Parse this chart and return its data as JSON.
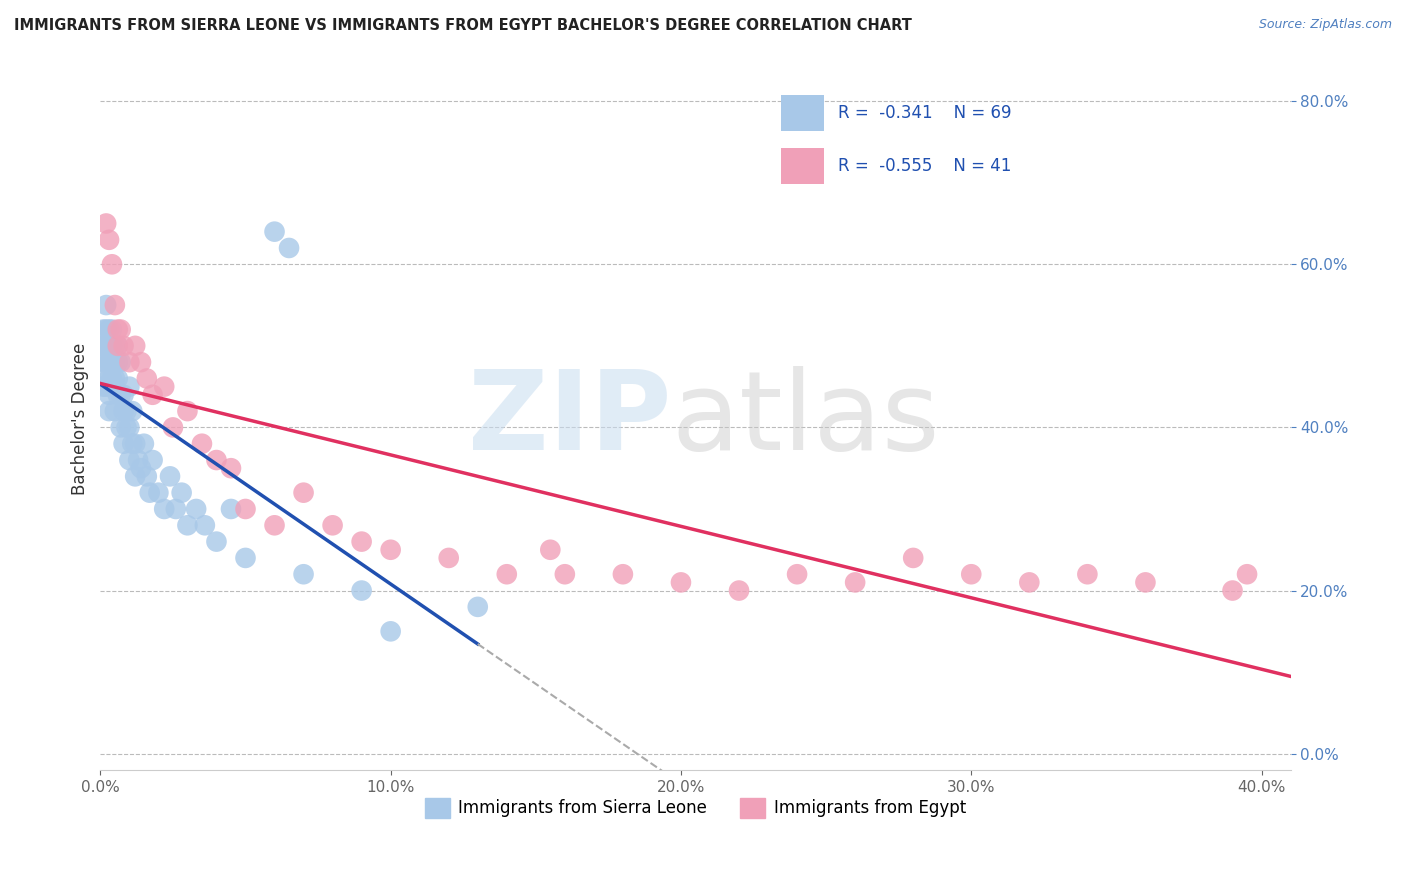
{
  "title": "IMMIGRANTS FROM SIERRA LEONE VS IMMIGRANTS FROM EGYPT BACHELOR'S DEGREE CORRELATION CHART",
  "source": "Source: ZipAtlas.com",
  "ylabel": "Bachelor's Degree",
  "legend_label1": "Immigrants from Sierra Leone",
  "legend_label2": "Immigrants from Egypt",
  "R1": -0.341,
  "N1": 69,
  "R2": -0.555,
  "N2": 41,
  "color1": "#a8c8e8",
  "color2": "#f0a0b8",
  "line_color1": "#2050b0",
  "line_color2": "#e03060",
  "xlim": [
    0.0,
    0.41
  ],
  "ylim": [
    -0.02,
    0.84
  ],
  "xticks": [
    0.0,
    0.1,
    0.2,
    0.3,
    0.4
  ],
  "yticks": [
    0.0,
    0.2,
    0.4,
    0.6,
    0.8
  ],
  "sierra_leone_x": [
    0.001,
    0.001,
    0.001,
    0.001,
    0.002,
    0.002,
    0.002,
    0.002,
    0.002,
    0.002,
    0.003,
    0.003,
    0.003,
    0.003,
    0.003,
    0.003,
    0.003,
    0.004,
    0.004,
    0.004,
    0.004,
    0.004,
    0.005,
    0.005,
    0.005,
    0.005,
    0.005,
    0.006,
    0.006,
    0.006,
    0.006,
    0.007,
    0.007,
    0.007,
    0.008,
    0.008,
    0.008,
    0.009,
    0.009,
    0.01,
    0.01,
    0.01,
    0.011,
    0.011,
    0.012,
    0.012,
    0.013,
    0.014,
    0.015,
    0.016,
    0.017,
    0.018,
    0.02,
    0.022,
    0.024,
    0.026,
    0.028,
    0.03,
    0.033,
    0.036,
    0.04,
    0.045,
    0.05,
    0.06,
    0.065,
    0.07,
    0.09,
    0.1,
    0.13
  ],
  "sierra_leone_y": [
    0.5,
    0.48,
    0.45,
    0.52,
    0.55,
    0.5,
    0.48,
    0.45,
    0.52,
    0.46,
    0.5,
    0.48,
    0.44,
    0.52,
    0.46,
    0.42,
    0.5,
    0.48,
    0.45,
    0.5,
    0.52,
    0.46,
    0.5,
    0.48,
    0.45,
    0.42,
    0.46,
    0.48,
    0.44,
    0.5,
    0.46,
    0.48,
    0.44,
    0.4,
    0.42,
    0.38,
    0.44,
    0.4,
    0.42,
    0.45,
    0.4,
    0.36,
    0.38,
    0.42,
    0.38,
    0.34,
    0.36,
    0.35,
    0.38,
    0.34,
    0.32,
    0.36,
    0.32,
    0.3,
    0.34,
    0.3,
    0.32,
    0.28,
    0.3,
    0.28,
    0.26,
    0.3,
    0.24,
    0.64,
    0.62,
    0.22,
    0.2,
    0.15,
    0.18
  ],
  "egypt_x": [
    0.002,
    0.003,
    0.004,
    0.005,
    0.006,
    0.006,
    0.007,
    0.008,
    0.01,
    0.012,
    0.014,
    0.016,
    0.018,
    0.022,
    0.025,
    0.03,
    0.035,
    0.04,
    0.045,
    0.05,
    0.06,
    0.07,
    0.08,
    0.09,
    0.1,
    0.12,
    0.14,
    0.155,
    0.16,
    0.18,
    0.2,
    0.22,
    0.24,
    0.26,
    0.28,
    0.3,
    0.32,
    0.34,
    0.36,
    0.39,
    0.395
  ],
  "egypt_y": [
    0.65,
    0.63,
    0.6,
    0.55,
    0.52,
    0.5,
    0.52,
    0.5,
    0.48,
    0.5,
    0.48,
    0.46,
    0.44,
    0.45,
    0.4,
    0.42,
    0.38,
    0.36,
    0.35,
    0.3,
    0.28,
    0.32,
    0.28,
    0.26,
    0.25,
    0.24,
    0.22,
    0.25,
    0.22,
    0.22,
    0.21,
    0.2,
    0.22,
    0.21,
    0.24,
    0.22,
    0.21,
    0.22,
    0.21,
    0.2,
    0.22
  ]
}
